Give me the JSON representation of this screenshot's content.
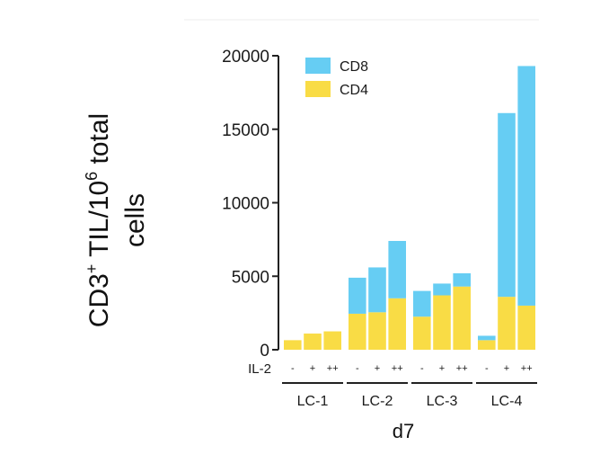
{
  "chart_data": {
    "type": "bar",
    "stacked": true,
    "ylabel": "CD3+ TIL/10^6 total cells",
    "ylabel_lines": [
      "CD3",
      "+",
      " TIL/10",
      "6",
      " total",
      "cells"
    ],
    "xlabel": "d7",
    "ylim": [
      0,
      20000
    ],
    "yticks": [
      0,
      5000,
      10000,
      15000,
      20000
    ],
    "il2_row_label": "IL-2",
    "legend_position": "top-left",
    "groups": [
      {
        "label": "LC-1",
        "il2": [
          "-",
          "+",
          "++"
        ]
      },
      {
        "label": "LC-2",
        "il2": [
          "-",
          "+",
          "++"
        ]
      },
      {
        "label": "LC-3",
        "il2": [
          "-",
          "+",
          "++"
        ]
      },
      {
        "label": "LC-4",
        "il2": [
          "-",
          "+",
          "++"
        ]
      }
    ],
    "series": [
      {
        "name": "CD4",
        "color": "#f9dc45",
        "values": [
          650,
          1100,
          1250,
          2450,
          2550,
          3500,
          2250,
          3700,
          4300,
          650,
          3600,
          3000
        ]
      },
      {
        "name": "CD8",
        "color": "#66cdf3",
        "values": [
          0,
          0,
          0,
          2450,
          3050,
          3900,
          1750,
          800,
          900,
          300,
          12500,
          16300
        ]
      }
    ],
    "legend": [
      {
        "name": "CD8",
        "color": "#66cdf3"
      },
      {
        "name": "CD4",
        "color": "#f9dc45"
      }
    ]
  }
}
